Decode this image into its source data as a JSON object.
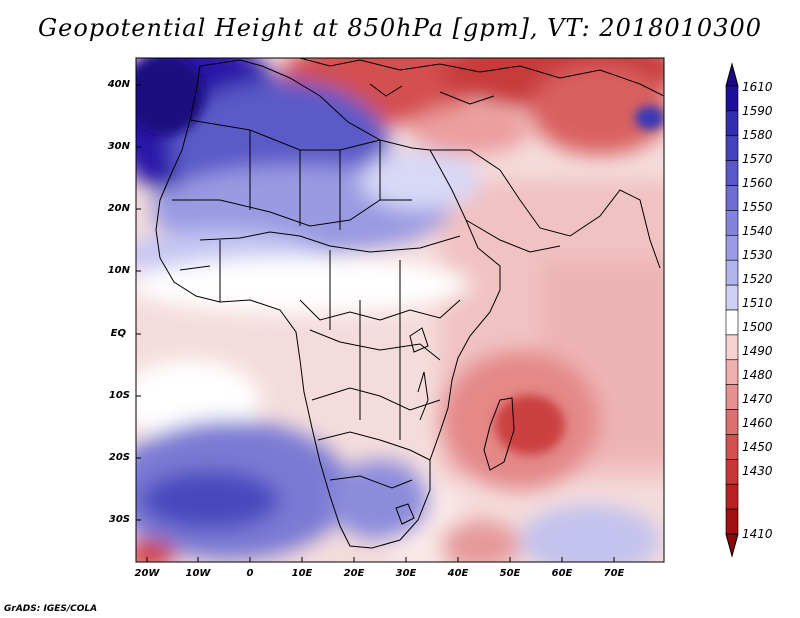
{
  "title": "Geopotential Height at 850hPa [gpm], VT: 2018010300",
  "footer": "GrADS: IGES/COLA",
  "lat_labels": [
    "40N",
    "30N",
    "20N",
    "10N",
    "EQ",
    "10S",
    "20S",
    "30S"
  ],
  "lon_labels": [
    "20W",
    "10W",
    "0",
    "10E",
    "20E",
    "30E",
    "40E",
    "50E",
    "60E",
    "70E"
  ],
  "colorbar": {
    "labels": [
      "1610",
      "1590",
      "1580",
      "1570",
      "1560",
      "1550",
      "1540",
      "1530",
      "1520",
      "1510",
      "1500",
      "1490",
      "1480",
      "1470",
      "1460",
      "1450",
      "1430",
      "1410"
    ],
    "colors": [
      "#1f0f9a",
      "#2e2eae",
      "#4343bd",
      "#5858c8",
      "#6d6dd2",
      "#8383dc",
      "#9a9ae5",
      "#b3b3ee",
      "#d0d0f7",
      "#ffffff",
      "#f7d0d0",
      "#efb0b0",
      "#e69090",
      "#dc7070",
      "#d25050",
      "#c83636",
      "#b82222",
      "#a01010"
    ],
    "top_color": "#1a0880",
    "bottom_color": "#8a0a0a"
  },
  "colors": {
    "ocean_neutral": "#f6e4e4",
    "land_outline": "#000000"
  }
}
